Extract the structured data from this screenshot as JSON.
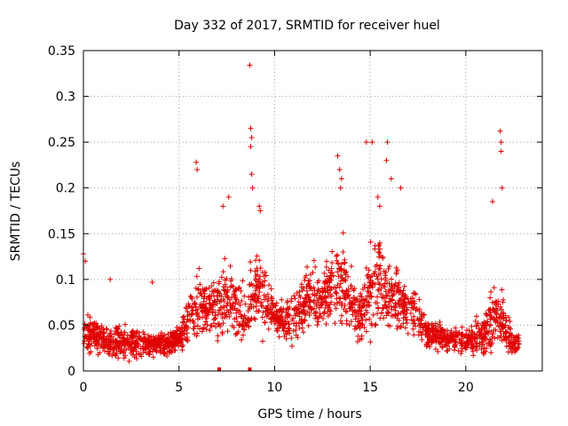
{
  "chart_data": {
    "type": "scatter",
    "title": "Day 332 of 2017, SRMTID for receiver huel",
    "xlabel": "GPS time / hours",
    "ylabel": "SRMTID / TECUs",
    "xlim": [
      0,
      24
    ],
    "ylim": [
      0,
      0.35
    ],
    "xticks": [
      0,
      5,
      10,
      15,
      20
    ],
    "xtick_labels": [
      "0",
      "5",
      "10",
      "15",
      "20"
    ],
    "yticks": [
      0,
      0.05,
      0.1,
      0.15,
      0.2,
      0.25,
      0.3,
      0.35
    ],
    "ytick_labels": [
      "0",
      "0.05",
      "0.1",
      "0.15",
      "0.2",
      "0.25",
      "0.3",
      "0.35"
    ],
    "grid": true,
    "marker": "plus",
    "color": "#e00000",
    "series": [
      {
        "name": "SRMTID",
        "envelope": {
          "hours": [
            0.0,
            0.5,
            1.0,
            1.5,
            2.0,
            2.5,
            3.0,
            3.5,
            4.0,
            4.5,
            5.0,
            5.5,
            6.0,
            6.5,
            7.0,
            7.5,
            8.0,
            8.5,
            9.0,
            9.5,
            10.0,
            10.5,
            11.0,
            11.5,
            12.0,
            12.5,
            13.0,
            13.5,
            14.0,
            14.5,
            15.0,
            15.5,
            16.0,
            16.5,
            17.0,
            17.5,
            18.0,
            18.5,
            19.0,
            19.5,
            20.0,
            20.5,
            21.0,
            21.5,
            22.0,
            22.5,
            22.8
          ],
          "center": [
            0.04,
            0.04,
            0.035,
            0.03,
            0.03,
            0.03,
            0.03,
            0.03,
            0.03,
            0.03,
            0.035,
            0.06,
            0.07,
            0.07,
            0.07,
            0.08,
            0.07,
            0.06,
            0.09,
            0.08,
            0.06,
            0.055,
            0.06,
            0.07,
            0.08,
            0.08,
            0.09,
            0.1,
            0.08,
            0.06,
            0.09,
            0.1,
            0.08,
            0.08,
            0.07,
            0.06,
            0.04,
            0.04,
            0.035,
            0.035,
            0.035,
            0.035,
            0.04,
            0.06,
            0.05,
            0.03,
            0.03
          ],
          "spread": [
            0.03,
            0.03,
            0.03,
            0.025,
            0.025,
            0.025,
            0.025,
            0.02,
            0.02,
            0.02,
            0.02,
            0.04,
            0.05,
            0.04,
            0.05,
            0.06,
            0.05,
            0.05,
            0.06,
            0.05,
            0.03,
            0.03,
            0.04,
            0.05,
            0.05,
            0.05,
            0.06,
            0.07,
            0.05,
            0.05,
            0.07,
            0.08,
            0.06,
            0.05,
            0.05,
            0.04,
            0.025,
            0.025,
            0.02,
            0.02,
            0.02,
            0.025,
            0.04,
            0.05,
            0.04,
            0.025,
            0.02
          ]
        },
        "peaks": [
          [
            0.0,
            0.128
          ],
          [
            0.1,
            0.12
          ],
          [
            1.4,
            0.1
          ],
          [
            3.6,
            0.097
          ],
          [
            5.9,
            0.228
          ],
          [
            5.95,
            0.22
          ],
          [
            7.3,
            0.18
          ],
          [
            7.6,
            0.19
          ],
          [
            8.7,
            0.334
          ],
          [
            8.75,
            0.265
          ],
          [
            8.8,
            0.255
          ],
          [
            8.75,
            0.245
          ],
          [
            8.8,
            0.215
          ],
          [
            8.85,
            0.2
          ],
          [
            9.2,
            0.18
          ],
          [
            9.25,
            0.175
          ],
          [
            13.3,
            0.235
          ],
          [
            13.4,
            0.22
          ],
          [
            13.5,
            0.21
          ],
          [
            13.45,
            0.2
          ],
          [
            14.8,
            0.25
          ],
          [
            15.1,
            0.25
          ],
          [
            15.4,
            0.19
          ],
          [
            15.5,
            0.18
          ],
          [
            15.9,
            0.25
          ],
          [
            15.85,
            0.23
          ],
          [
            16.1,
            0.21
          ],
          [
            16.6,
            0.2
          ],
          [
            21.4,
            0.185
          ],
          [
            21.8,
            0.262
          ],
          [
            21.85,
            0.25
          ],
          [
            21.85,
            0.24
          ],
          [
            21.9,
            0.2
          ]
        ],
        "baseline_markers_hours": [
          7.1,
          8.7
        ]
      }
    ]
  }
}
